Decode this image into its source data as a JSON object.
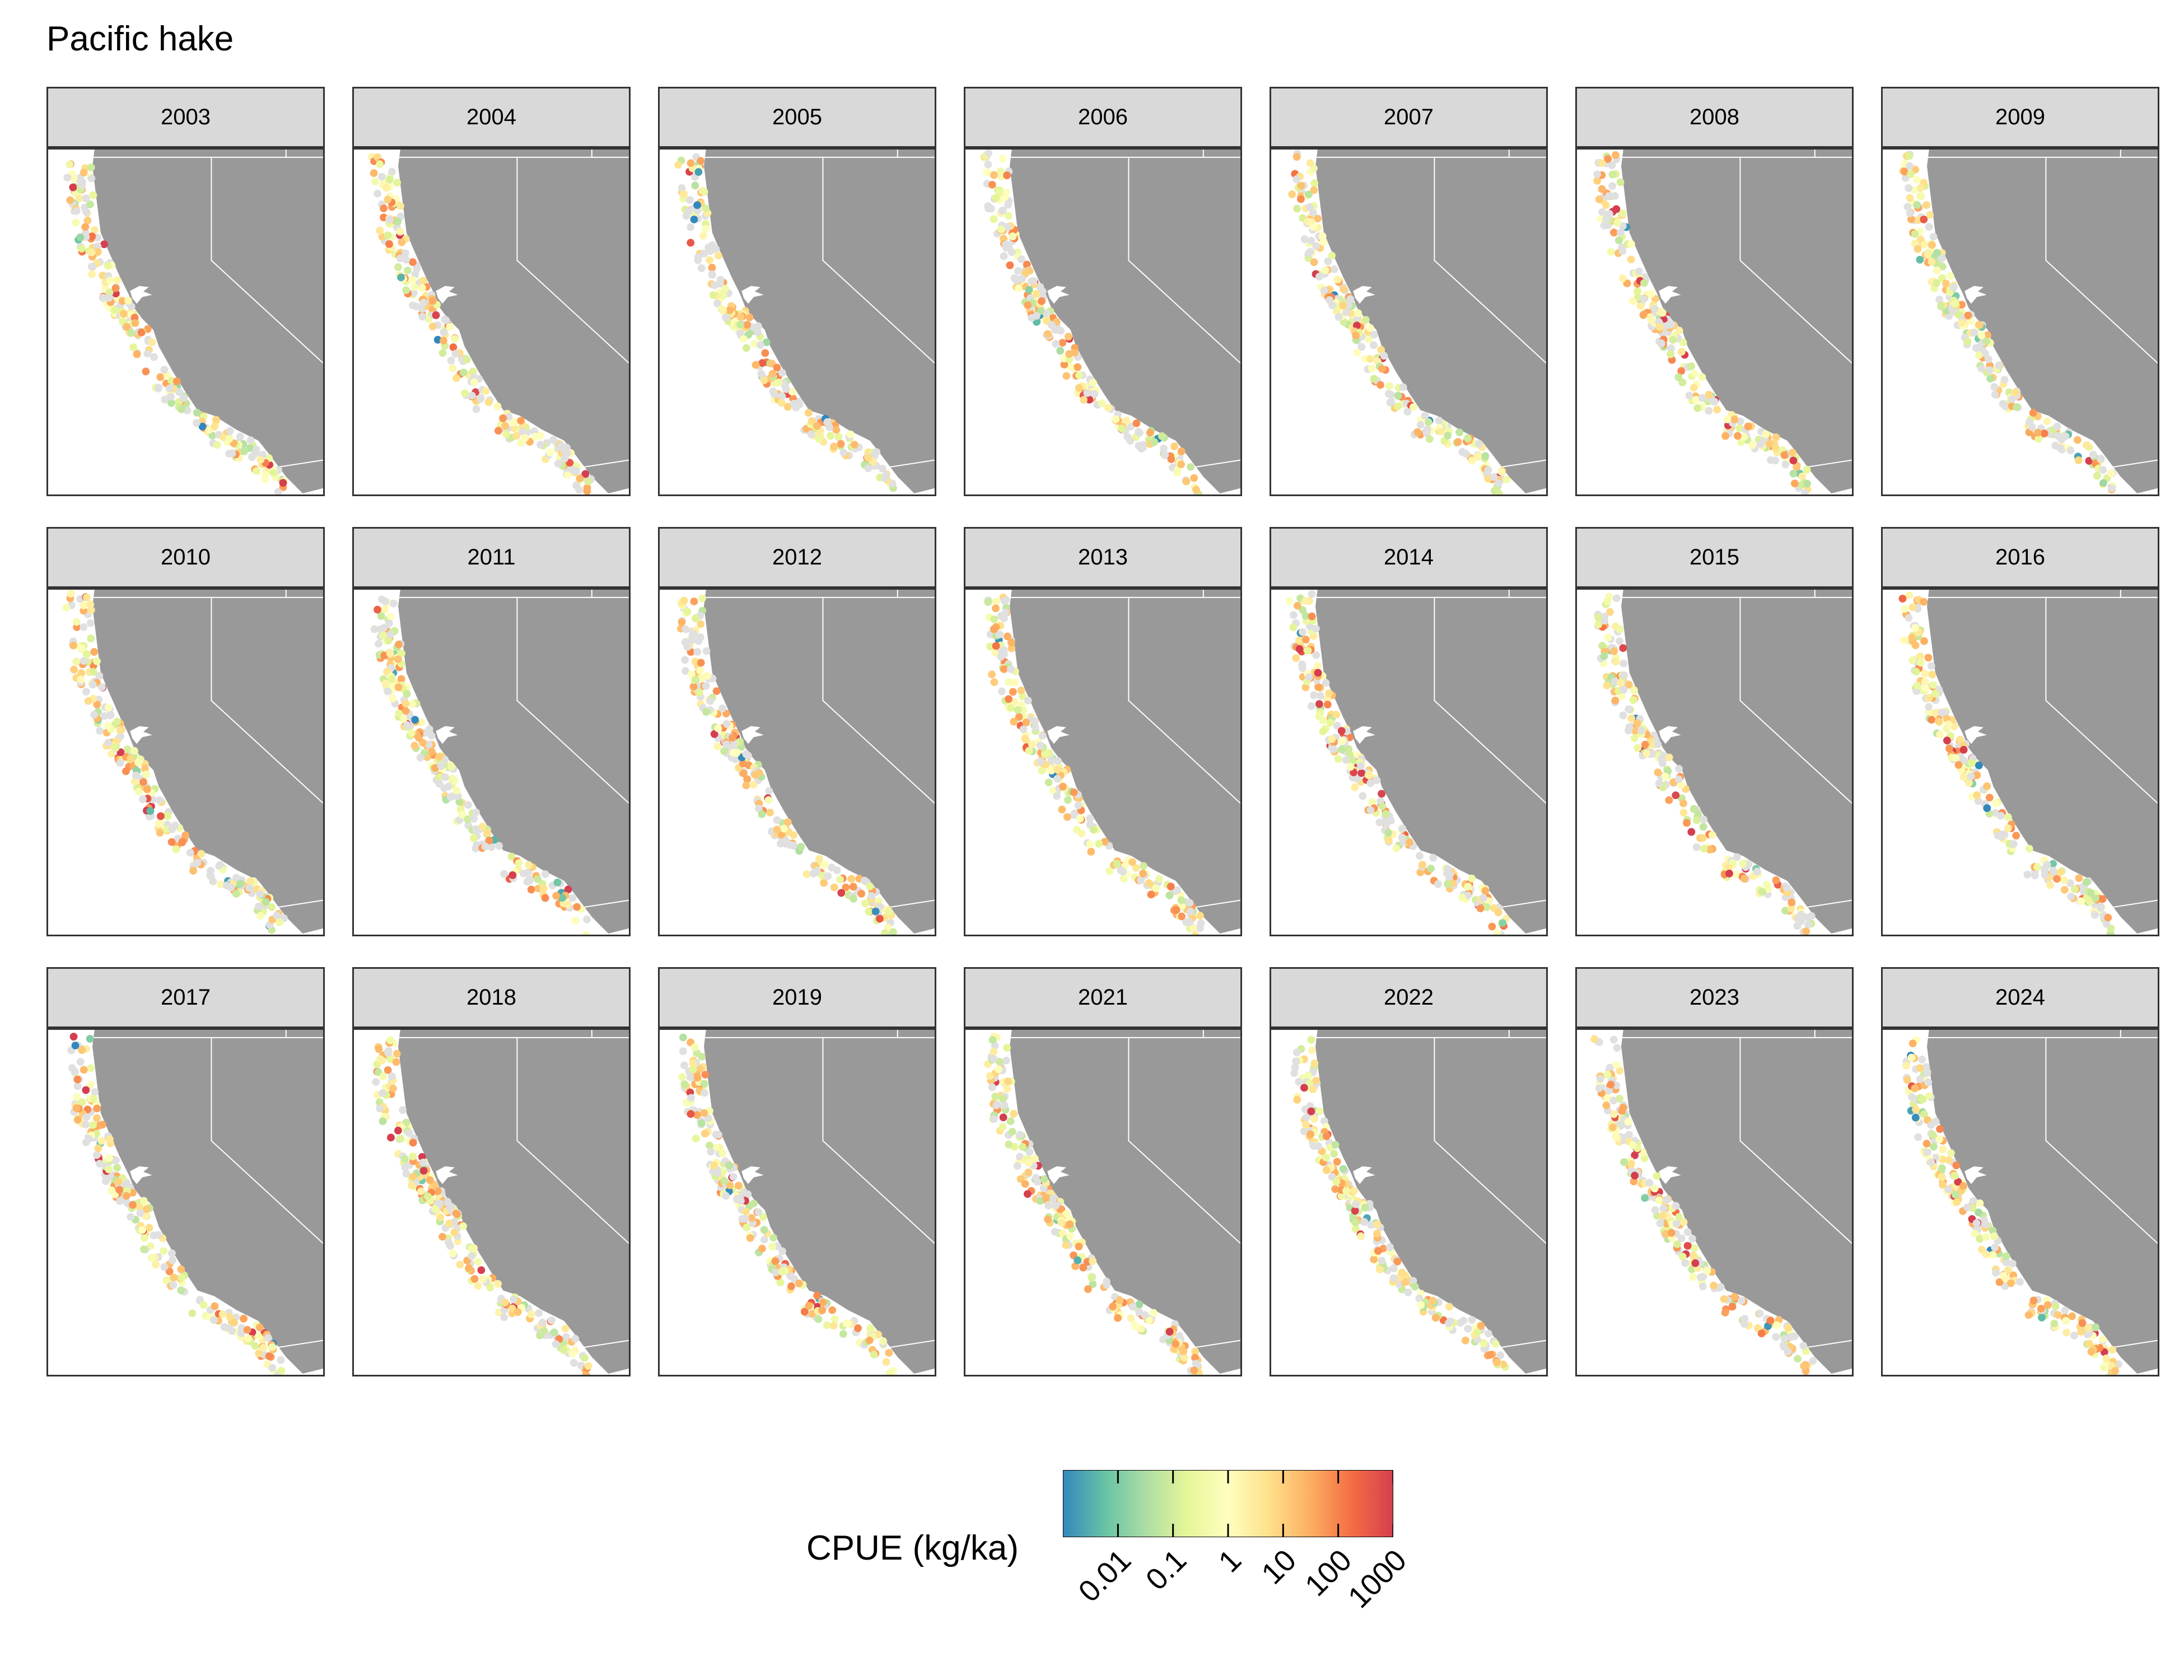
{
  "title": "Pacific hake",
  "panels": [
    {
      "year": "2003",
      "seed": 3
    },
    {
      "year": "2004",
      "seed": 4
    },
    {
      "year": "2005",
      "seed": 5
    },
    {
      "year": "2006",
      "seed": 6
    },
    {
      "year": "2007",
      "seed": 7
    },
    {
      "year": "2008",
      "seed": 8
    },
    {
      "year": "2009",
      "seed": 9
    },
    {
      "year": "2010",
      "seed": 10
    },
    {
      "year": "2011",
      "seed": 11
    },
    {
      "year": "2012",
      "seed": 12
    },
    {
      "year": "2013",
      "seed": 13
    },
    {
      "year": "2014",
      "seed": 14
    },
    {
      "year": "2015",
      "seed": 15
    },
    {
      "year": "2016",
      "seed": 16
    },
    {
      "year": "2017",
      "seed": 17
    },
    {
      "year": "2018",
      "seed": 18
    },
    {
      "year": "2019",
      "seed": 19
    },
    {
      "year": "2021",
      "seed": 21
    },
    {
      "year": "2022",
      "seed": 22
    },
    {
      "year": "2023",
      "seed": 23
    },
    {
      "year": "2024",
      "seed": 24
    }
  ],
  "legend": {
    "title": "CPUE (kg/ka)",
    "scale": "log10",
    "range": [
      0.001,
      1000
    ],
    "ticks": [
      {
        "value": 0.01,
        "label": "0.01"
      },
      {
        "value": 0.1,
        "label": "0.1"
      },
      {
        "value": 1,
        "label": "1"
      },
      {
        "value": 10,
        "label": "10"
      },
      {
        "value": 100,
        "label": "100"
      },
      {
        "value": 1000,
        "label": "1000"
      }
    ],
    "colors": [
      "#3288bd",
      "#66c2a5",
      "#abdda4",
      "#e6f598",
      "#ffffbf",
      "#fee08b",
      "#fdae61",
      "#f46d43",
      "#d53e4f"
    ]
  },
  "colors": {
    "land": "#999999",
    "ocean": "#ffffff",
    "border_lines": "#ffffff",
    "zero_catch": "#e0e0e0",
    "strip_fill": "#d9d9d9",
    "frame": "#333333"
  }
}
